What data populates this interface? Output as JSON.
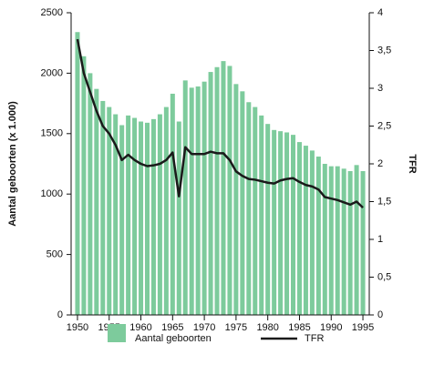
{
  "chart_data": {
    "type": "bar",
    "ylabel": "Aantal geboorten (x 1.000)",
    "y2label": "TFR",
    "x": [
      1950,
      1951,
      1952,
      1953,
      1954,
      1955,
      1956,
      1957,
      1958,
      1959,
      1960,
      1961,
      1962,
      1963,
      1964,
      1965,
      1966,
      1967,
      1968,
      1969,
      1970,
      1971,
      1972,
      1973,
      1974,
      1975,
      1976,
      1977,
      1978,
      1979,
      1980,
      1981,
      1982,
      1983,
      1984,
      1985,
      1986,
      1987,
      1988,
      1989,
      1990,
      1991,
      1992,
      1993,
      1994,
      1995
    ],
    "xlim": [
      1949,
      1996
    ],
    "xticks": [
      1950,
      1955,
      1960,
      1965,
      1970,
      1975,
      1980,
      1985,
      1990,
      1995
    ],
    "ylim": [
      0,
      2500
    ],
    "yticks": [
      0,
      500,
      1000,
      1500,
      2000,
      2500
    ],
    "y2lim": [
      0,
      4
    ],
    "y2ticks": [
      0,
      {
        "value": 0.5,
        "label": "0,5"
      },
      1,
      {
        "value": 1.5,
        "label": "1,5"
      },
      2,
      {
        "value": 2.5,
        "label": "2,5"
      },
      3,
      {
        "value": 3.5,
        "label": "3,5"
      },
      4
    ],
    "series": [
      {
        "name": "Aantal geboorten",
        "type": "bar",
        "color": "#7dcb9c",
        "values": [
          2340,
          2140,
          2000,
          1870,
          1770,
          1720,
          1660,
          1570,
          1650,
          1630,
          1600,
          1590,
          1620,
          1660,
          1720,
          1830,
          1600,
          1940,
          1880,
          1890,
          1930,
          2010,
          2050,
          2100,
          2060,
          1910,
          1850,
          1760,
          1720,
          1650,
          1580,
          1530,
          1520,
          1510,
          1490,
          1430,
          1400,
          1360,
          1310,
          1250,
          1230,
          1230,
          1210,
          1190,
          1240,
          1190
        ]
      },
      {
        "name": "TFR",
        "type": "line",
        "axis": "y2",
        "color": "#1a1a1a",
        "values": [
          3.65,
          3.2,
          2.95,
          2.7,
          2.5,
          2.4,
          2.25,
          2.05,
          2.12,
          2.05,
          2.0,
          1.97,
          1.98,
          2.0,
          2.05,
          2.15,
          1.57,
          2.22,
          2.13,
          2.13,
          2.13,
          2.16,
          2.14,
          2.14,
          2.05,
          1.9,
          1.84,
          1.8,
          1.79,
          1.77,
          1.75,
          1.74,
          1.78,
          1.8,
          1.81,
          1.76,
          1.72,
          1.7,
          1.66,
          1.56,
          1.54,
          1.52,
          1.49,
          1.46,
          1.5,
          1.42
        ]
      }
    ]
  }
}
